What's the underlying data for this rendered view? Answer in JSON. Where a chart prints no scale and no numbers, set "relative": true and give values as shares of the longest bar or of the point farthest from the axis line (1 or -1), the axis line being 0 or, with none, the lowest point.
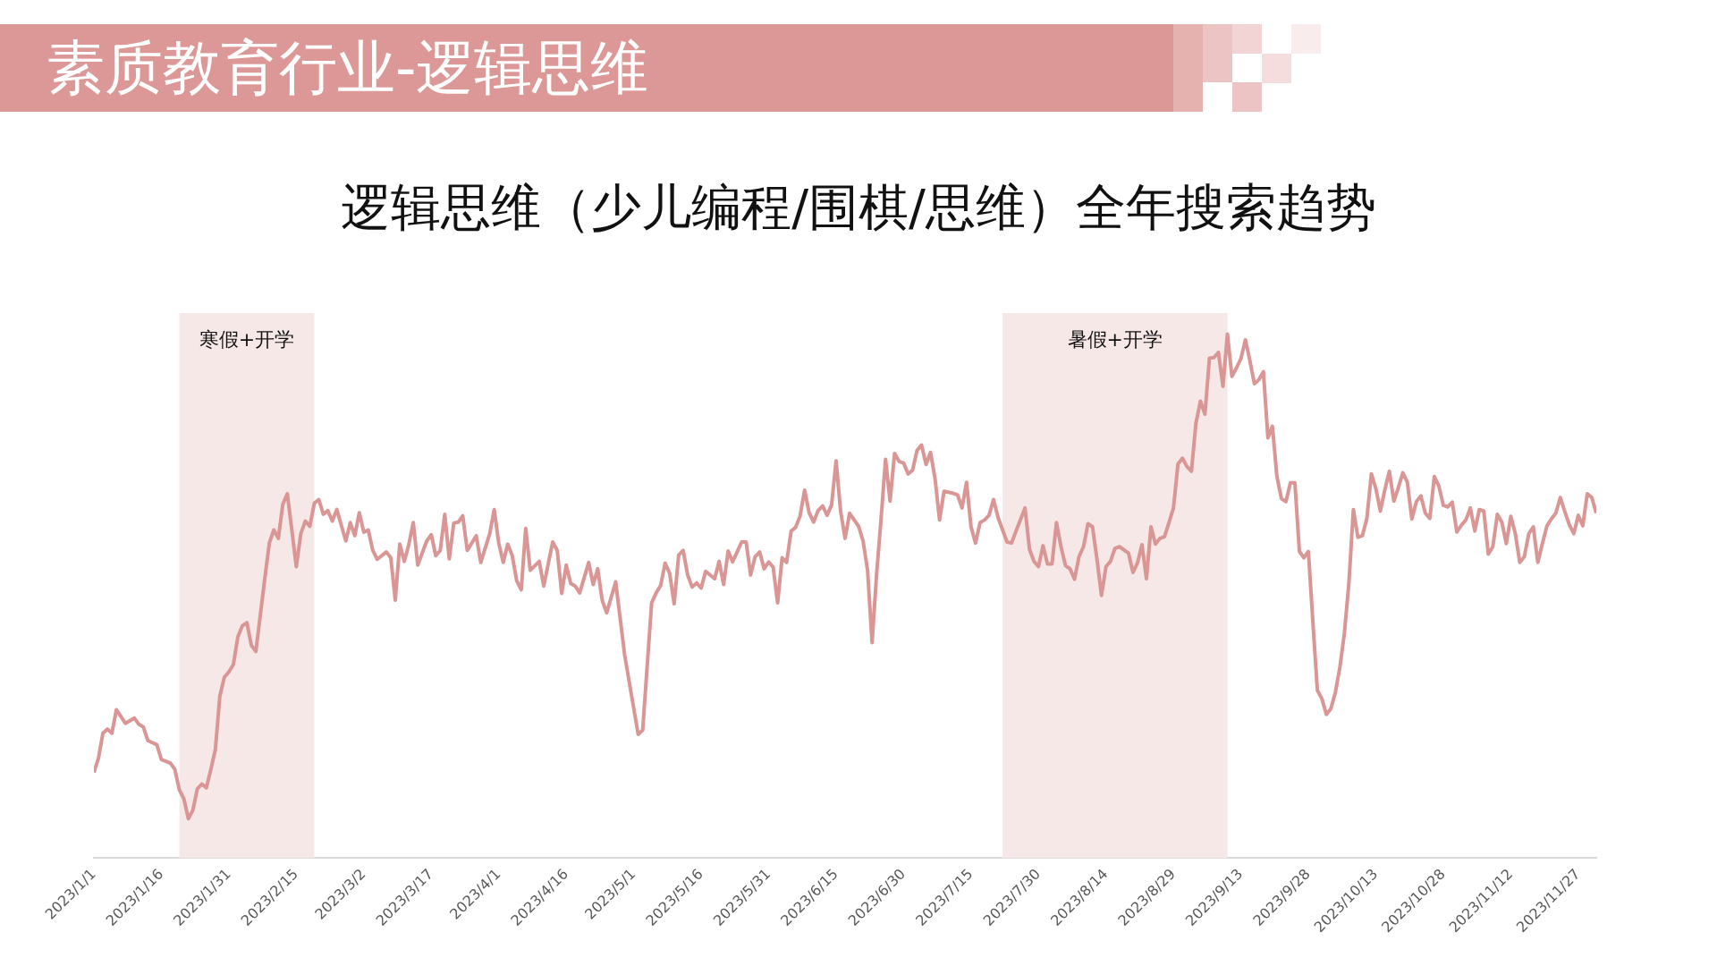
{
  "chart_data": {
    "type": "line",
    "title": "素质教育行业-逻辑思维",
    "subtitle": "逻辑思维（少儿编程/围棋/思维）全年搜索趋势",
    "relative": true,
    "x": [
      "2023-01-01",
      "2023-01-02",
      "2023-01-03",
      "2023-01-04",
      "2023-01-05",
      "2023-01-06",
      "2023-01-08",
      "2023-01-10",
      "2023-01-11",
      "2023-01-12",
      "2023-01-13",
      "2023-01-15",
      "2023-01-16",
      "2023-01-18",
      "2023-01-19",
      "2023-01-20",
      "2023-01-21",
      "2023-01-22",
      "2023-01-23",
      "2023-01-24",
      "2023-01-25",
      "2023-01-26",
      "2023-01-27",
      "2023-01-28",
      "2023-01-29",
      "2023-01-30",
      "2023-01-31",
      "2023-02-01",
      "2023-02-02",
      "2023-02-03",
      "2023-02-04",
      "2023-02-05",
      "2023-02-06",
      "2023-02-07",
      "2023-02-08",
      "2023-02-09",
      "2023-02-10",
      "2023-02-11",
      "2023-02-12",
      "2023-02-13",
      "2023-02-14",
      "2023-02-15",
      "2023-02-16",
      "2023-02-17",
      "2023-02-18",
      "2023-02-19",
      "2023-02-20",
      "2023-02-21",
      "2023-02-22",
      "2023-02-23",
      "2023-02-24",
      "2023-02-26",
      "2023-02-27",
      "2023-02-28",
      "2023-03-01",
      "2023-03-02",
      "2023-03-03",
      "2023-03-04",
      "2023-03-05",
      "2023-03-07",
      "2023-03-08",
      "2023-03-09",
      "2023-03-10",
      "2023-03-11",
      "2023-03-12",
      "2023-03-13",
      "2023-03-14",
      "2023-03-16",
      "2023-03-17",
      "2023-03-18",
      "2023-03-19",
      "2023-03-20",
      "2023-03-21",
      "2023-03-22",
      "2023-03-23",
      "2023-03-24",
      "2023-03-25",
      "2023-03-27",
      "2023-03-28",
      "2023-03-30",
      "2023-03-31",
      "2023-04-01",
      "2023-04-02",
      "2023-04-03",
      "2023-04-04",
      "2023-04-05",
      "2023-04-06",
      "2023-04-07",
      "2023-04-08",
      "2023-04-10",
      "2023-04-11",
      "2023-04-13",
      "2023-04-14",
      "2023-04-15",
      "2023-04-16",
      "2023-04-17",
      "2023-04-18",
      "2023-04-19",
      "2023-04-21",
      "2023-04-22",
      "2023-04-23",
      "2023-04-24",
      "2023-04-25",
      "2023-04-27",
      "2023-04-29",
      "2023-05-02",
      "2023-05-03",
      "2023-05-05",
      "2023-05-06",
      "2023-05-07",
      "2023-05-08",
      "2023-05-09",
      "2023-05-10",
      "2023-05-11",
      "2023-05-12",
      "2023-05-13",
      "2023-05-14",
      "2023-05-15",
      "2023-05-16",
      "2023-05-17",
      "2023-05-19",
      "2023-05-20",
      "2023-05-21",
      "2023-05-22",
      "2023-05-23",
      "2023-05-24",
      "2023-05-25",
      "2023-05-26",
      "2023-05-27",
      "2023-05-28",
      "2023-05-29",
      "2023-05-30",
      "2023-05-31",
      "2023-06-01",
      "2023-06-02",
      "2023-06-03",
      "2023-06-04",
      "2023-06-05",
      "2023-06-06",
      "2023-06-07",
      "2023-06-08",
      "2023-06-09",
      "2023-06-10",
      "2023-06-11",
      "2023-06-12",
      "2023-06-13",
      "2023-06-14",
      "2023-06-15",
      "2023-06-16",
      "2023-06-17",
      "2023-06-18",
      "2023-06-20",
      "2023-06-21",
      "2023-06-22",
      "2023-06-23",
      "2023-06-24",
      "2023-06-25",
      "2023-06-26",
      "2023-06-27",
      "2023-06-28",
      "2023-06-29",
      "2023-06-30",
      "2023-07-01",
      "2023-07-02",
      "2023-07-03",
      "2023-07-04",
      "2023-07-05",
      "2023-07-06",
      "2023-07-07",
      "2023-07-08",
      "2023-07-09",
      "2023-07-11",
      "2023-07-12",
      "2023-07-13",
      "2023-07-14",
      "2023-07-15",
      "2023-07-16",
      "2023-07-17",
      "2023-07-18",
      "2023-07-19",
      "2023-07-20",
      "2023-07-21",
      "2023-07-23",
      "2023-07-24",
      "2023-07-25",
      "2023-07-27",
      "2023-07-28",
      "2023-07-29",
      "2023-07-30",
      "2023-07-31",
      "2023-08-01",
      "2023-08-02",
      "2023-08-03",
      "2023-08-04",
      "2023-08-05",
      "2023-08-06",
      "2023-08-07",
      "2023-08-08",
      "2023-08-09",
      "2023-08-10",
      "2023-08-11",
      "2023-08-12",
      "2023-08-13",
      "2023-08-14",
      "2023-08-15",
      "2023-08-16",
      "2023-08-17",
      "2023-08-19",
      "2023-08-20",
      "2023-08-21",
      "2023-08-22",
      "2023-08-23",
      "2023-08-24",
      "2023-08-25",
      "2023-08-26",
      "2023-08-27",
      "2023-08-28",
      "2023-08-29",
      "2023-08-30",
      "2023-08-31",
      "2023-09-01",
      "2023-09-02",
      "2023-09-03",
      "2023-09-04",
      "2023-09-05",
      "2023-09-06",
      "2023-09-07",
      "2023-09-08",
      "2023-09-09",
      "2023-09-10",
      "2023-09-11",
      "2023-09-12",
      "2023-09-13",
      "2023-09-14",
      "2023-09-15",
      "2023-09-16",
      "2023-09-17",
      "2023-09-18",
      "2023-09-19",
      "2023-09-20",
      "2023-09-21",
      "2023-09-22",
      "2023-09-23",
      "2023-09-24",
      "2023-09-25",
      "2023-09-26",
      "2023-09-27",
      "2023-09-28",
      "2023-09-29",
      "2023-09-30",
      "2023-10-01",
      "2023-10-02",
      "2023-10-03",
      "2023-10-04",
      "2023-10-05",
      "2023-10-06",
      "2023-10-07",
      "2023-10-08",
      "2023-10-09",
      "2023-10-10",
      "2023-10-11",
      "2023-10-12",
      "2023-10-13",
      "2023-10-14",
      "2023-10-15",
      "2023-10-16",
      "2023-10-17",
      "2023-10-18",
      "2023-10-19",
      "2023-10-20",
      "2023-10-21",
      "2023-10-22",
      "2023-10-23",
      "2023-10-24",
      "2023-10-25",
      "2023-10-26",
      "2023-10-27",
      "2023-10-28",
      "2023-10-29",
      "2023-10-30",
      "2023-10-31",
      "2023-11-01",
      "2023-11-02",
      "2023-11-03",
      "2023-11-04",
      "2023-11-05",
      "2023-11-06",
      "2023-11-07",
      "2023-11-08",
      "2023-11-09",
      "2023-11-10",
      "2023-11-11",
      "2023-11-12",
      "2023-11-13",
      "2023-11-14",
      "2023-11-15",
      "2023-11-16",
      "2023-11-17",
      "2023-11-18",
      "2023-11-19",
      "2023-11-20",
      "2023-11-21",
      "2023-11-22",
      "2023-11-23",
      "2023-11-24",
      "2023-11-25",
      "2023-11-26",
      "2023-11-27",
      "2023-11-28",
      "2023-11-29",
      "2023-11-30",
      "2023-12-01"
    ],
    "series": [
      {
        "color": "#d99694",
        "values": [
          0.163,
          0.19,
          0.238,
          0.246,
          0.238,
          0.283,
          0.257,
          0.267,
          0.255,
          0.25,
          0.224,
          0.216,
          0.188,
          0.181,
          0.169,
          0.13,
          0.113,
          0.075,
          0.091,
          0.132,
          0.141,
          0.134,
          0.169,
          0.207,
          0.309,
          0.345,
          0.355,
          0.369,
          0.422,
          0.443,
          0.449,
          0.406,
          0.394,
          0.464,
          0.534,
          0.601,
          0.626,
          0.61,
          0.675,
          0.695,
          0.626,
          0.556,
          0.619,
          0.643,
          0.633,
          0.677,
          0.684,
          0.656,
          0.663,
          0.643,
          0.665,
          0.605,
          0.64,
          0.615,
          0.659,
          0.622,
          0.626,
          0.587,
          0.57,
          0.584,
          0.573,
          0.492,
          0.599,
          0.566,
          0.598,
          0.64,
          0.559,
          0.605,
          0.617,
          0.577,
          0.587,
          0.656,
          0.571,
          0.639,
          0.641,
          0.653,
          0.587,
          0.615,
          0.564,
          0.619,
          0.665,
          0.601,
          0.564,
          0.599,
          0.577,
          0.529,
          0.512,
          0.629,
          0.549,
          0.566,
          0.519,
          0.603,
          0.587,
          0.505,
          0.559,
          0.524,
          0.519,
          0.506,
          0.564,
          0.522,
          0.552,
          0.492,
          0.468,
          0.527,
          0.387,
          0.236,
          0.244,
          0.487,
          0.506,
          0.52,
          0.563,
          0.543,
          0.485,
          0.578,
          0.587,
          0.54,
          0.517,
          0.525,
          0.515,
          0.547,
          0.533,
          0.566,
          0.522,
          0.586,
          0.565,
          0.584,
          0.603,
          0.603,
          0.54,
          0.575,
          0.584,
          0.552,
          0.565,
          0.555,
          0.487,
          0.573,
          0.564,
          0.624,
          0.631,
          0.653,
          0.702,
          0.659,
          0.641,
          0.663,
          0.672,
          0.654,
          0.674,
          0.758,
          0.662,
          0.61,
          0.658,
          0.633,
          0.605,
          0.549,
          0.411,
          0.541,
          0.647,
          0.761,
          0.681,
          0.772,
          0.757,
          0.754,
          0.733,
          0.74,
          0.778,
          0.788,
          0.751,
          0.774,
          0.724,
          0.645,
          0.7,
          0.696,
          0.693,
          0.668,
          0.717,
          0.632,
          0.601,
          0.64,
          0.645,
          0.654,
          0.684,
          0.65,
          0.603,
          0.601,
          0.624,
          0.668,
          0.589,
          0.566,
          0.556,
          0.596,
          0.561,
          0.561,
          0.64,
          0.594,
          0.558,
          0.552,
          0.532,
          0.575,
          0.594,
          0.638,
          0.632,
          0.57,
          0.501,
          0.556,
          0.566,
          0.591,
          0.594,
          0.582,
          0.545,
          0.563,
          0.598,
          0.533,
          0.632,
          0.599,
          0.61,
          0.613,
          0.64,
          0.668,
          0.752,
          0.763,
          0.747,
          0.738,
          0.83,
          0.872,
          0.847,
          0.954,
          0.955,
          0.965,
          0.9,
          1,
          0.919,
          0.935,
          0.953,
          0.989,
          0.949,
          0.905,
          0.913,
          0.928,
          0.802,
          0.824,
          0.728,
          0.686,
          0.68,
          0.716,
          0.716,
          0.585,
          0.573,
          0.585,
          0.45,
          0.32,
          0.304,
          0.274,
          0.285,
          0.316,
          0.364,
          0.429,
          0.524,
          0.665,
          0.612,
          0.615,
          0.648,
          0.733,
          0.705,
          0.662,
          0.703,
          0.738,
          0.681,
          0.707,
          0.735,
          0.717,
          0.647,
          0.68,
          0.691,
          0.658,
          0.648,
          0.728,
          0.71,
          0.673,
          0.67,
          0.679,
          0.622,
          0.635,
          0.645,
          0.668,
          0.624,
          0.665,
          0.662,
          0.58,
          0.594,
          0.656,
          0.641,
          0.6,
          0.652,
          0.619,
          0.564,
          0.575,
          0.619,
          0.632,
          0.564,
          0.599,
          0.633,
          0.647,
          0.658,
          0.688,
          0.661,
          0.636,
          0.619,
          0.654,
          0.634,
          0.695,
          0.688,
          0.658
        ]
      }
    ],
    "xlim": [
      "2023-01-01",
      "2023-12-01"
    ],
    "xticks": [
      {
        "value": "2023-01-01",
        "label": "2023/1/1"
      },
      {
        "value": "2023-01-16",
        "label": "2023/1/16"
      },
      {
        "value": "2023-01-31",
        "label": "2023/1/31"
      },
      {
        "value": "2023-02-15",
        "label": "2023/2/15"
      },
      {
        "value": "2023-03-02",
        "label": "2023/3/2"
      },
      {
        "value": "2023-03-17",
        "label": "2023/3/17"
      },
      {
        "value": "2023-04-01",
        "label": "2023/4/1"
      },
      {
        "value": "2023-04-16",
        "label": "2023/4/16"
      },
      {
        "value": "2023-05-01",
        "label": "2023/5/1"
      },
      {
        "value": "2023-05-16",
        "label": "2023/5/16"
      },
      {
        "value": "2023-05-31",
        "label": "2023/5/31"
      },
      {
        "value": "2023-06-15",
        "label": "2023/6/15"
      },
      {
        "value": "2023-06-30",
        "label": "2023/6/30"
      },
      {
        "value": "2023-07-15",
        "label": "2023/7/15"
      },
      {
        "value": "2023-07-30",
        "label": "2023/7/30"
      },
      {
        "value": "2023-08-14",
        "label": "2023/8/14"
      },
      {
        "value": "2023-08-29",
        "label": "2023/8/29"
      },
      {
        "value": "2023-09-13",
        "label": "2023/9/13"
      },
      {
        "value": "2023-09-28",
        "label": "2023/9/28"
      },
      {
        "value": "2023-10-13",
        "label": "2023/10/13"
      },
      {
        "value": "2023-10-28",
        "label": "2023/10/28"
      },
      {
        "value": "2023-11-12",
        "label": "2023/11/12"
      },
      {
        "value": "2023-11-27",
        "label": "2023/11/27"
      }
    ],
    "bands": [
      {
        "axis": "x",
        "from": "2023-01-20",
        "to": "2023-02-19",
        "label": "寒假+开学",
        "color": "#f7e8e8"
      },
      {
        "axis": "x",
        "from": "2023-07-22",
        "to": "2023-09-10",
        "label": "暑假+开学",
        "color": "#f7e8e8"
      }
    ]
  }
}
